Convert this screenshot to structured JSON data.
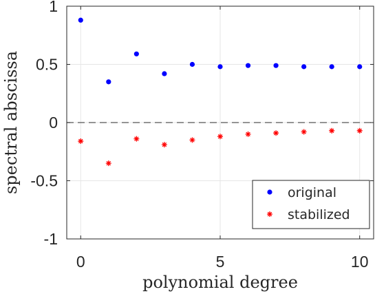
{
  "chart_data": {
    "type": "scatter",
    "xlabel": "polynomial degree",
    "ylabel": "spectral abscissa",
    "xlim": [
      -0.5,
      10.5
    ],
    "ylim": [
      -1,
      1
    ],
    "x_ticks": [
      0,
      5,
      10
    ],
    "x_tick_labels": [
      "0",
      "5",
      "10"
    ],
    "y_ticks": [
      -1,
      -0.5,
      0,
      0.5,
      1
    ],
    "y_tick_labels": [
      "-1",
      "-0.5",
      "0",
      "0.5",
      "1"
    ],
    "grid": true,
    "reference_line": {
      "y": 0,
      "style": "dashed",
      "color": "#555555"
    },
    "legend_position": "bottom-right",
    "series": [
      {
        "name": "original",
        "marker": "dot",
        "color": "#0000ff",
        "x": [
          0,
          1,
          2,
          3,
          4,
          5,
          6,
          7,
          8,
          9,
          10
        ],
        "y": [
          0.88,
          0.35,
          0.59,
          0.42,
          0.5,
          0.48,
          0.49,
          0.49,
          0.48,
          0.48,
          0.48
        ]
      },
      {
        "name": "stabilized",
        "marker": "asterisk",
        "color": "#ff0000",
        "x": [
          0,
          1,
          2,
          3,
          4,
          5,
          6,
          7,
          8,
          9,
          10
        ],
        "y": [
          -0.16,
          -0.35,
          -0.14,
          -0.19,
          -0.15,
          -0.12,
          -0.1,
          -0.09,
          -0.08,
          -0.07,
          -0.07
        ]
      }
    ]
  }
}
